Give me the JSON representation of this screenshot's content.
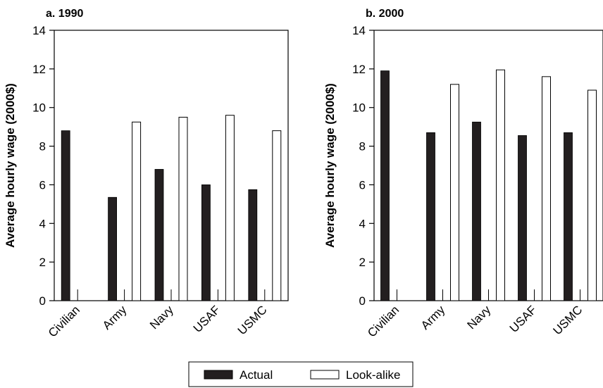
{
  "chart_data": [
    {
      "type": "bar",
      "title": "a. 1990",
      "ylabel": "Average hourly wage (2000$)",
      "xlabel": "",
      "ylim": [
        0,
        14
      ],
      "yticks": [
        0,
        2,
        4,
        6,
        8,
        10,
        12,
        14
      ],
      "categories": [
        "Civilian",
        "Army",
        "Navy",
        "USAF",
        "USMC"
      ],
      "series": [
        {
          "name": "Actual",
          "color": "#231f20",
          "values": [
            8.8,
            5.35,
            6.8,
            6.0,
            5.75
          ]
        },
        {
          "name": "Look-alike",
          "color": "#ffffff",
          "values": [
            null,
            9.25,
            9.5,
            9.6,
            8.8
          ]
        }
      ],
      "grid": false,
      "legend": "bottom-center"
    },
    {
      "type": "bar",
      "title": "b. 2000",
      "ylabel": "Average hourly wage (2000$)",
      "xlabel": "",
      "ylim": [
        0,
        14
      ],
      "yticks": [
        0,
        2,
        4,
        6,
        8,
        10,
        12,
        14
      ],
      "categories": [
        "Civilian",
        "Army",
        "Navy",
        "USAF",
        "USMC"
      ],
      "series": [
        {
          "name": "Actual",
          "color": "#231f20",
          "values": [
            11.9,
            8.7,
            9.25,
            8.55,
            8.7
          ]
        },
        {
          "name": "Look-alike",
          "color": "#ffffff",
          "values": [
            null,
            11.2,
            11.95,
            11.6,
            10.9
          ]
        }
      ],
      "grid": false,
      "legend": "bottom-center"
    }
  ],
  "legend": {
    "items": [
      {
        "label": "Actual",
        "fill": "#231f20"
      },
      {
        "label": "Look-alike",
        "fill": "#ffffff"
      }
    ]
  }
}
